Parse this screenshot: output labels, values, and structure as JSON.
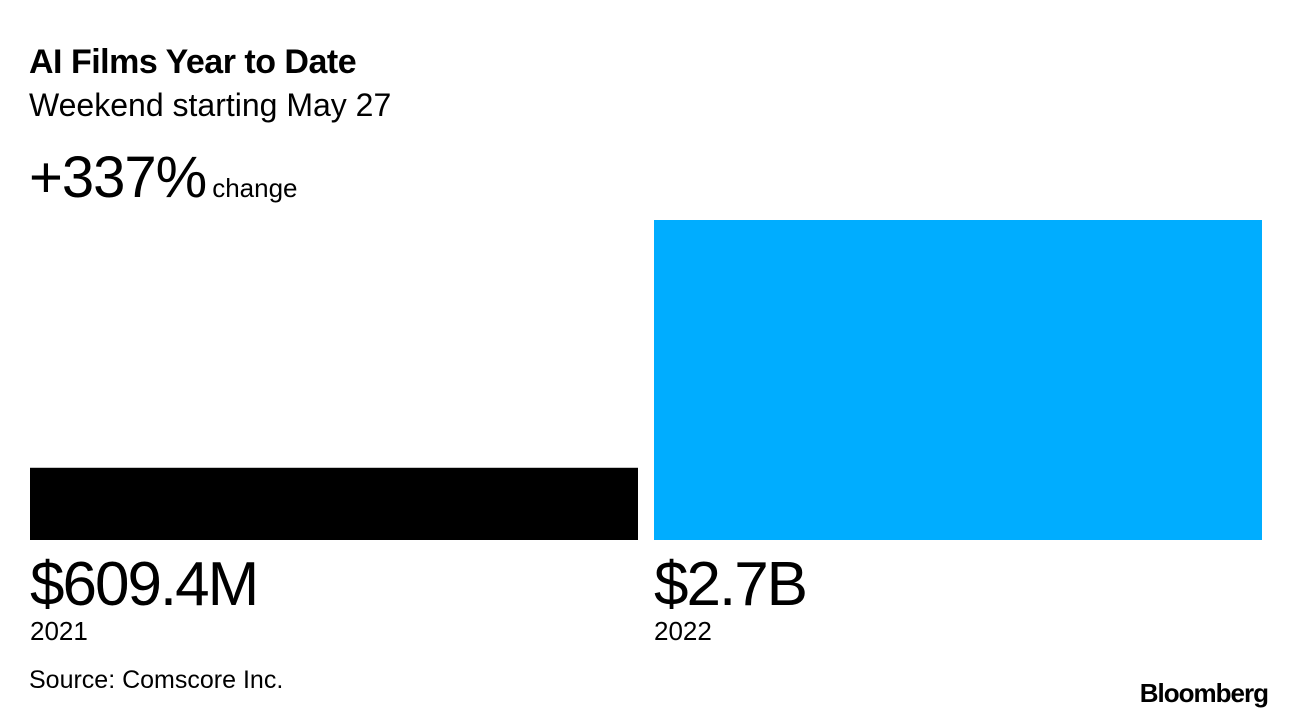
{
  "header": {
    "title": "AI Films Year to Date",
    "subtitle": "Weekend starting May 27",
    "change_value": "+337%",
    "change_label": "change"
  },
  "chart_data": {
    "type": "bar",
    "title": "AI Films Year to Date",
    "subtitle": "Weekend starting May 27",
    "categories": [
      "2021",
      "2022"
    ],
    "values": [
      609.4,
      2700
    ],
    "value_labels": [
      "$609.4M",
      "$2.7B"
    ],
    "unit": "USD millions",
    "colors": [
      "#000000",
      "#00adff"
    ],
    "ylim": [
      0,
      2700
    ]
  },
  "footer": {
    "source": "Source: Comscore Inc.",
    "brand": "Bloomberg"
  }
}
